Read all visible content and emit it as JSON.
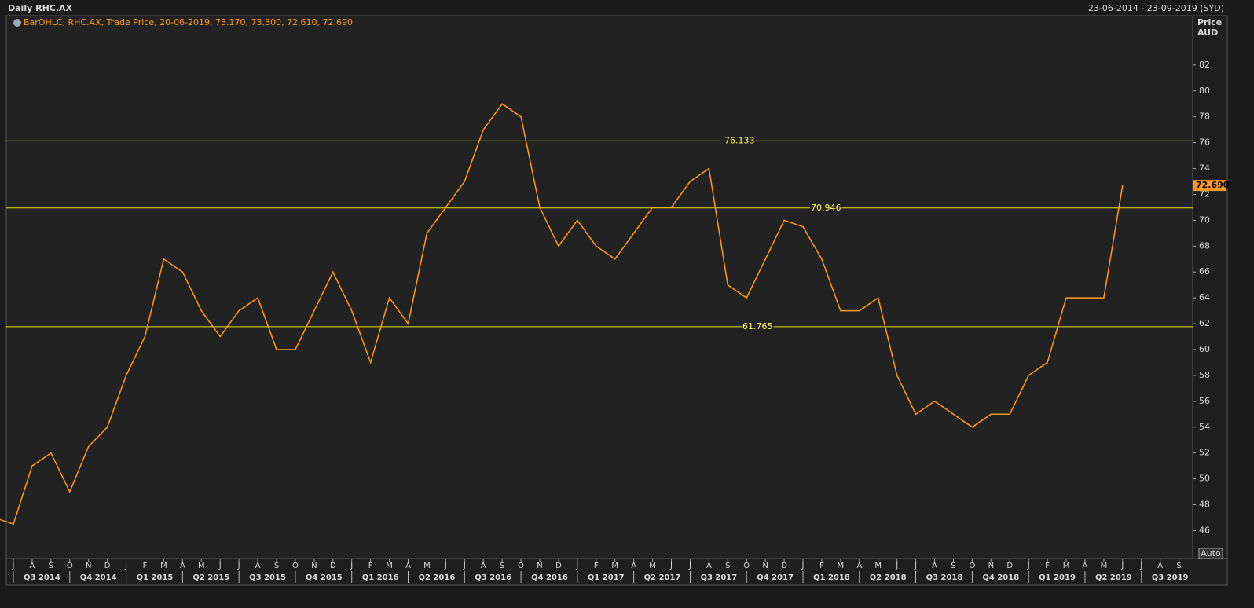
{
  "chart_data": {
    "type": "line",
    "title": "Daily RHC.AX",
    "date_range": "23-06-2014 - 23-09-2019 (SYD)",
    "legend_text": "BarOHLC, RHC.AX, Trade Price, 20-06-2019, 73.170, 73.300, 72.610, 72.690",
    "y_axis_label": "Price",
    "y_axis_unit": "AUD",
    "auto_button": "Auto",
    "color": "#ff9a1a",
    "level_color": "#e6e600",
    "xlim": [
      "2014-07",
      "2019-09"
    ],
    "ylim": [
      43.9,
      84.3
    ],
    "yticks": [
      46,
      48,
      50,
      52,
      54,
      56,
      58,
      60,
      62,
      64,
      66,
      68,
      70,
      72,
      74,
      76,
      78,
      80,
      82
    ],
    "levels": [
      76.133,
      70.946,
      61.765
    ],
    "last_price": {
      "value": 72.69,
      "label": "72.690"
    },
    "x": [
      "2014-06",
      "2014-07",
      "2014-08",
      "2014-09",
      "2014-10",
      "2014-11",
      "2014-12",
      "2015-01",
      "2015-02",
      "2015-03",
      "2015-04",
      "2015-05",
      "2015-06",
      "2015-07",
      "2015-08",
      "2015-09",
      "2015-10",
      "2015-11",
      "2015-12",
      "2016-01",
      "2016-02",
      "2016-03",
      "2016-04",
      "2016-05",
      "2016-06",
      "2016-07",
      "2016-08",
      "2016-09",
      "2016-10",
      "2016-11",
      "2016-12",
      "2017-01",
      "2017-02",
      "2017-03",
      "2017-04",
      "2017-05",
      "2017-06",
      "2017-07",
      "2017-08",
      "2017-09",
      "2017-10",
      "2017-11",
      "2017-12",
      "2018-01",
      "2018-02",
      "2018-03",
      "2018-04",
      "2018-05",
      "2018-06",
      "2018-07",
      "2018-08",
      "2018-09",
      "2018-10",
      "2018-11",
      "2018-12",
      "2019-01",
      "2019-02",
      "2019-03",
      "2019-04",
      "2019-05",
      "2019-06"
    ],
    "values": [
      47,
      46.5,
      51,
      52,
      49,
      52.5,
      54,
      58,
      61,
      67,
      66,
      63,
      61,
      63,
      64,
      60,
      60,
      63,
      66,
      63,
      59,
      64,
      62,
      69,
      71,
      73,
      77,
      79,
      78,
      71,
      68,
      70,
      68,
      67,
      69,
      71,
      71,
      73,
      74,
      65,
      64,
      67,
      70,
      69.5,
      67,
      63,
      63,
      64,
      58,
      55,
      56,
      55,
      54,
      55,
      55,
      58,
      59,
      64,
      64,
      64,
      72.69
    ],
    "xticks": [
      {
        "value": "2014-07",
        "label": "J"
      },
      {
        "value": "2014-08",
        "label": "A"
      },
      {
        "value": "2014-09",
        "label": "S"
      },
      {
        "value": "2014-10",
        "label": "O"
      },
      {
        "value": "2014-11",
        "label": "N"
      },
      {
        "value": "2014-12",
        "label": "D"
      },
      {
        "value": "2015-01",
        "label": "J"
      },
      {
        "value": "2015-02",
        "label": "F"
      },
      {
        "value": "2015-03",
        "label": "M"
      },
      {
        "value": "2015-04",
        "label": "A"
      },
      {
        "value": "2015-05",
        "label": "M"
      },
      {
        "value": "2015-06",
        "label": "J"
      },
      {
        "value": "2015-07",
        "label": "J"
      },
      {
        "value": "2015-08",
        "label": "A"
      },
      {
        "value": "2015-09",
        "label": "S"
      },
      {
        "value": "2015-10",
        "label": "O"
      },
      {
        "value": "2015-11",
        "label": "N"
      },
      {
        "value": "2015-12",
        "label": "D"
      },
      {
        "value": "2016-01",
        "label": "J"
      },
      {
        "value": "2016-02",
        "label": "F"
      },
      {
        "value": "2016-03",
        "label": "M"
      },
      {
        "value": "2016-04",
        "label": "A"
      },
      {
        "value": "2016-05",
        "label": "M"
      },
      {
        "value": "2016-06",
        "label": "J"
      },
      {
        "value": "2016-07",
        "label": "J"
      },
      {
        "value": "2016-08",
        "label": "A"
      },
      {
        "value": "2016-09",
        "label": "S"
      },
      {
        "value": "2016-10",
        "label": "O"
      },
      {
        "value": "2016-11",
        "label": "N"
      },
      {
        "value": "2016-12",
        "label": "D"
      },
      {
        "value": "2017-01",
        "label": "J"
      },
      {
        "value": "2017-02",
        "label": "F"
      },
      {
        "value": "2017-03",
        "label": "M"
      },
      {
        "value": "2017-04",
        "label": "A"
      },
      {
        "value": "2017-05",
        "label": "M"
      },
      {
        "value": "2017-06",
        "label": "J"
      },
      {
        "value": "2017-07",
        "label": "J"
      },
      {
        "value": "2017-08",
        "label": "A"
      },
      {
        "value": "2017-09",
        "label": "S"
      },
      {
        "value": "2017-10",
        "label": "O"
      },
      {
        "value": "2017-11",
        "label": "N"
      },
      {
        "value": "2017-12",
        "label": "D"
      },
      {
        "value": "2018-01",
        "label": "J"
      },
      {
        "value": "2018-02",
        "label": "F"
      },
      {
        "value": "2018-03",
        "label": "M"
      },
      {
        "value": "2018-04",
        "label": "A"
      },
      {
        "value": "2018-05",
        "label": "M"
      },
      {
        "value": "2018-06",
        "label": "J"
      },
      {
        "value": "2018-07",
        "label": "J"
      },
      {
        "value": "2018-08",
        "label": "A"
      },
      {
        "value": "2018-09",
        "label": "S"
      },
      {
        "value": "2018-10",
        "label": "O"
      },
      {
        "value": "2018-11",
        "label": "N"
      },
      {
        "value": "2018-12",
        "label": "D"
      },
      {
        "value": "2019-01",
        "label": "J"
      },
      {
        "value": "2019-02",
        "label": "F"
      },
      {
        "value": "2019-03",
        "label": "M"
      },
      {
        "value": "2019-04",
        "label": "A"
      },
      {
        "value": "2019-05",
        "label": "M"
      },
      {
        "value": "2019-06",
        "label": "J"
      },
      {
        "value": "2019-07",
        "label": "J"
      },
      {
        "value": "2019-08",
        "label": "A"
      },
      {
        "value": "2019-09",
        "label": "S"
      }
    ],
    "quarter_ticks": [
      {
        "value": "2014-07",
        "label": "Q3 2014"
      },
      {
        "value": "2014-10",
        "label": "Q4 2014"
      },
      {
        "value": "2015-01",
        "label": "Q1 2015"
      },
      {
        "value": "2015-04",
        "label": "Q2 2015"
      },
      {
        "value": "2015-07",
        "label": "Q3 2015"
      },
      {
        "value": "2015-10",
        "label": "Q4 2015"
      },
      {
        "value": "2016-01",
        "label": "Q1 2016"
      },
      {
        "value": "2016-04",
        "label": "Q2 2016"
      },
      {
        "value": "2016-07",
        "label": "Q3 2016"
      },
      {
        "value": "2016-10",
        "label": "Q4 2016"
      },
      {
        "value": "2017-01",
        "label": "Q1 2017"
      },
      {
        "value": "2017-04",
        "label": "Q2 2017"
      },
      {
        "value": "2017-07",
        "label": "Q3 2017"
      },
      {
        "value": "2017-10",
        "label": "Q4 2017"
      },
      {
        "value": "2018-01",
        "label": "Q1 2018"
      },
      {
        "value": "2018-04",
        "label": "Q2 2018"
      },
      {
        "value": "2018-07",
        "label": "Q3 2018"
      },
      {
        "value": "2018-10",
        "label": "Q4 2018"
      },
      {
        "value": "2019-01",
        "label": "Q1 2019"
      },
      {
        "value": "2019-04",
        "label": "Q2 2019"
      },
      {
        "value": "2019-07",
        "label": "Q3 2019"
      }
    ]
  }
}
